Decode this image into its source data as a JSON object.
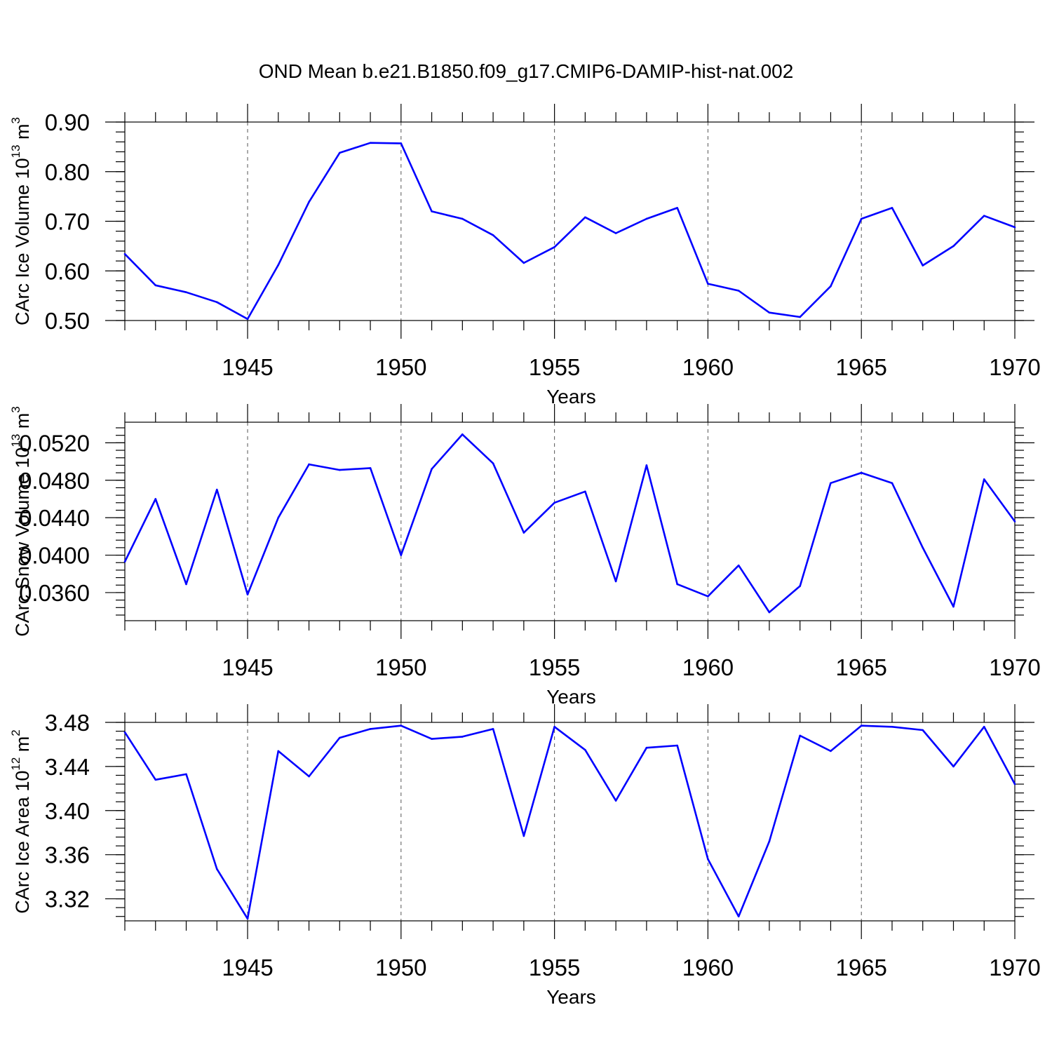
{
  "title": "OND Mean b.e21.B1850.f09_g17.CMIP6-DAMIP-hist-nat.002",
  "chart_data": [
    {
      "type": "line",
      "ylabel": "CArc Ice Volume 10",
      "ylabel_exp": "13",
      "ylabel_unit": " m",
      "ylabel_unit_exp": "3",
      "xlabel": "Years",
      "xlim": [
        1941,
        1970
      ],
      "ylim": [
        0.5,
        0.9
      ],
      "yticks": [
        0.5,
        0.6,
        0.7,
        0.8,
        0.9
      ],
      "ytick_labels": [
        "0.50",
        "0.60",
        "0.70",
        "0.80",
        "0.90"
      ],
      "ytick_minor_step": 0.02,
      "xticks": [
        1945,
        1950,
        1955,
        1960,
        1965,
        1970
      ],
      "xtick_labels": [
        "1945",
        "1950",
        "1955",
        "1960",
        "1965",
        "1970"
      ],
      "x": [
        1941,
        1942,
        1943,
        1944,
        1945,
        1946,
        1947,
        1948,
        1949,
        1950,
        1951,
        1952,
        1953,
        1954,
        1955,
        1956,
        1957,
        1958,
        1959,
        1960,
        1961,
        1962,
        1963,
        1964,
        1965,
        1966,
        1967,
        1968,
        1969,
        1970
      ],
      "values": [
        0.634,
        0.571,
        0.557,
        0.537,
        0.503,
        0.612,
        0.739,
        0.838,
        0.858,
        0.857,
        0.72,
        0.705,
        0.672,
        0.616,
        0.648,
        0.708,
        0.676,
        0.705,
        0.727,
        0.574,
        0.56,
        0.516,
        0.507,
        0.569,
        0.705,
        0.727,
        0.611,
        0.65,
        0.711,
        0.688
      ]
    },
    {
      "type": "line",
      "ylabel": "CArc Snow Volume 10",
      "ylabel_exp": "13",
      "ylabel_unit": " m",
      "ylabel_unit_exp": "3",
      "xlabel": "Years",
      "xlim": [
        1941,
        1970
      ],
      "ylim": [
        0.033,
        0.0542
      ],
      "yticks": [
        0.036,
        0.04,
        0.044,
        0.048,
        0.052
      ],
      "ytick_labels": [
        "0.0360",
        "0.0400",
        "0.0440",
        "0.0480",
        "0.0520"
      ],
      "ytick_minor_step": 0.0008,
      "xticks": [
        1945,
        1950,
        1955,
        1960,
        1965,
        1970
      ],
      "xtick_labels": [
        "1945",
        "1950",
        "1955",
        "1960",
        "1965",
        "1970"
      ],
      "x": [
        1941,
        1942,
        1943,
        1944,
        1945,
        1946,
        1947,
        1948,
        1949,
        1950,
        1951,
        1952,
        1953,
        1954,
        1955,
        1956,
        1957,
        1958,
        1959,
        1960,
        1961,
        1962,
        1963,
        1964,
        1965,
        1966,
        1967,
        1968,
        1969,
        1970
      ],
      "values": [
        0.0393,
        0.046,
        0.0369,
        0.047,
        0.0358,
        0.044,
        0.0497,
        0.0491,
        0.0493,
        0.04,
        0.0492,
        0.0529,
        0.0498,
        0.0424,
        0.0456,
        0.0468,
        0.0372,
        0.0496,
        0.0369,
        0.0356,
        0.0389,
        0.0339,
        0.0367,
        0.0477,
        0.0488,
        0.0477,
        0.0408,
        0.0345,
        0.0481,
        0.0436
      ]
    },
    {
      "type": "line",
      "ylabel": "CArc Ice Area 10",
      "ylabel_exp": "12",
      "ylabel_unit": " m",
      "ylabel_unit_exp": "2",
      "xlabel": "Years",
      "xlim": [
        1941,
        1970
      ],
      "ylim": [
        3.3,
        3.48
      ],
      "yticks": [
        3.32,
        3.36,
        3.4,
        3.44,
        3.48
      ],
      "ytick_labels": [
        "3.32",
        "3.36",
        "3.40",
        "3.44",
        "3.48"
      ],
      "ytick_minor_step": 0.008,
      "xticks": [
        1945,
        1950,
        1955,
        1960,
        1965,
        1970
      ],
      "xtick_labels": [
        "1945",
        "1950",
        "1955",
        "1960",
        "1965",
        "1970"
      ],
      "x": [
        1941,
        1942,
        1943,
        1944,
        1945,
        1946,
        1947,
        1948,
        1949,
        1950,
        1951,
        1952,
        1953,
        1954,
        1955,
        1956,
        1957,
        1958,
        1959,
        1960,
        1961,
        1962,
        1963,
        1964,
        1965,
        1966,
        1967,
        1968,
        1969,
        1970
      ],
      "values": [
        3.471,
        3.428,
        3.433,
        3.347,
        3.302,
        3.454,
        3.431,
        3.466,
        3.474,
        3.477,
        3.465,
        3.467,
        3.474,
        3.377,
        3.476,
        3.455,
        3.409,
        3.457,
        3.459,
        3.356,
        3.304,
        3.372,
        3.468,
        3.454,
        3.477,
        3.476,
        3.473,
        3.44,
        3.476,
        3.424
      ]
    }
  ]
}
